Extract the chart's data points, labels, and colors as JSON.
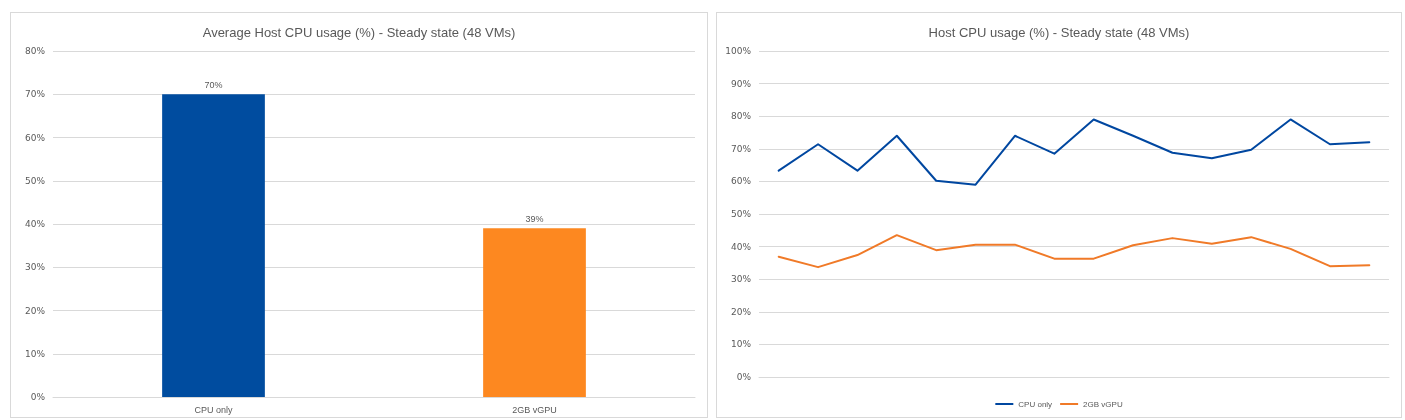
{
  "chart_data": [
    {
      "type": "bar",
      "title": "Average Host CPU usage (%) - Steady state (48 VMs)",
      "categories": [
        "CPU only",
        "2GB vGPU"
      ],
      "values": [
        70,
        39
      ],
      "colors": [
        "#004c9f",
        "#fd8820"
      ],
      "value_labels": [
        "70%",
        "39%"
      ],
      "ylim": [
        0,
        80
      ],
      "yticks": [
        {
          "value": 0,
          "label": "0%"
        },
        {
          "value": 10,
          "label": "10%"
        },
        {
          "value": 20,
          "label": "20%"
        },
        {
          "value": 30,
          "label": "30%"
        },
        {
          "value": 40,
          "label": "40%"
        },
        {
          "value": 50,
          "label": "50%"
        },
        {
          "value": 60,
          "label": "60%"
        },
        {
          "value": 70,
          "label": "70%"
        },
        {
          "value": 80,
          "label": "80%"
        }
      ],
      "grid": "y",
      "legend": false
    },
    {
      "type": "line",
      "title": "Host CPU usage (%) - Steady state (48 VMs)",
      "categories": [
        null,
        null,
        null,
        null,
        null,
        null,
        null,
        null,
        null,
        null,
        null,
        null,
        null,
        null,
        null,
        null
      ],
      "series": [
        {
          "name": "CPU only",
          "color": "#0047a0",
          "values": [
            63.3,
            71.4,
            63.3,
            74,
            60.2,
            59,
            74,
            68.5,
            79,
            74,
            68.8,
            67.1,
            69.7,
            79,
            71.4,
            72
          ]
        },
        {
          "name": "2GB vGPU",
          "color": "#f07a28",
          "values": [
            36.9,
            33.7,
            37.4,
            43.5,
            38.9,
            40.6,
            40.6,
            36.3,
            36.3,
            40.4,
            42.6,
            40.9,
            42.9,
            39.3,
            34,
            34.3
          ]
        }
      ],
      "ylim": [
        0,
        100
      ],
      "yticks": [
        {
          "value": 0,
          "label": "0%"
        },
        {
          "value": 10,
          "label": "10%"
        },
        {
          "value": 20,
          "label": "20%"
        },
        {
          "value": 30,
          "label": "30%"
        },
        {
          "value": 40,
          "label": "40%"
        },
        {
          "value": 50,
          "label": "50%"
        },
        {
          "value": 60,
          "label": "60%"
        },
        {
          "value": 70,
          "label": "70%"
        },
        {
          "value": 80,
          "label": "80%"
        },
        {
          "value": 90,
          "label": "90%"
        },
        {
          "value": 100,
          "label": "100%"
        }
      ],
      "grid": "y",
      "legend": "bottom",
      "marker": "none",
      "line_style": "solid"
    }
  ]
}
